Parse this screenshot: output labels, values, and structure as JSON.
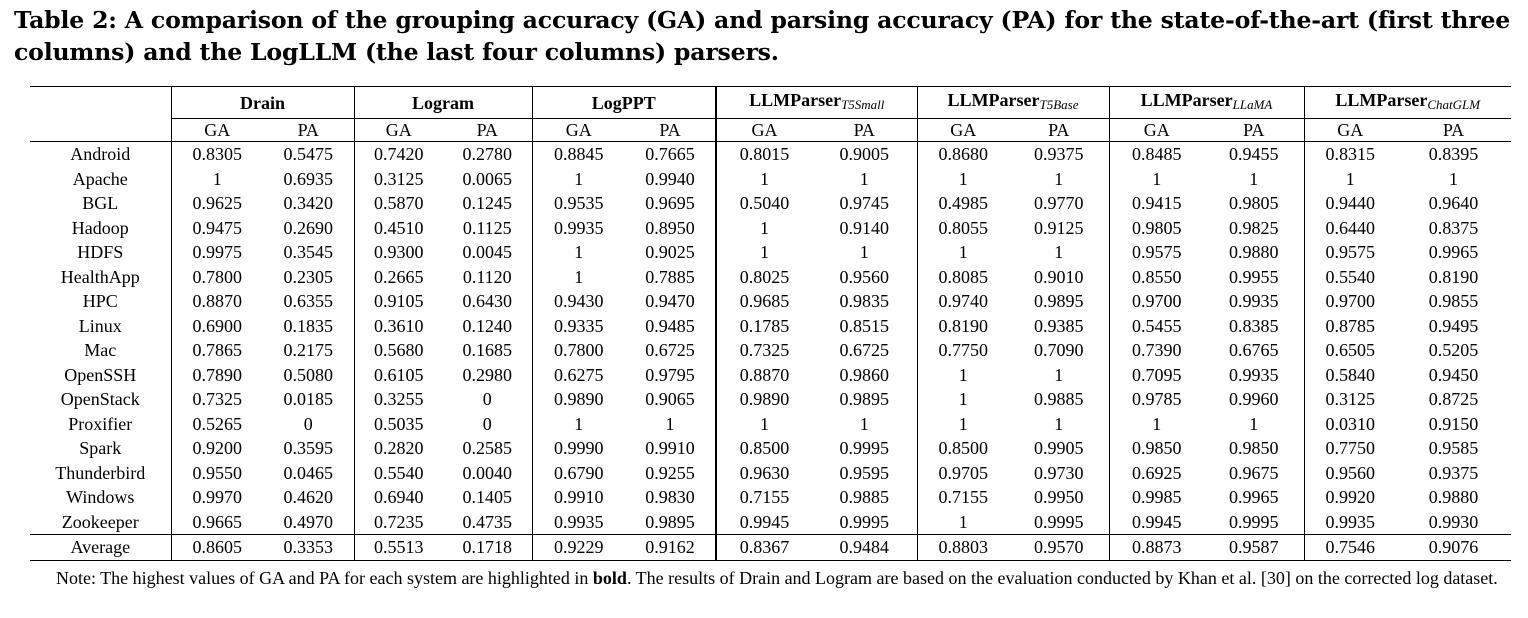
{
  "caption": "Table 2: A comparison of the grouping accuracy (GA) and parsing accuracy (PA) for the state-of-the-art (first three columns) and the LogLLM (the last four columns) parsers.",
  "systems": [
    {
      "name": "Drain",
      "sub": ""
    },
    {
      "name": "Logram",
      "sub": ""
    },
    {
      "name": "LogPPT",
      "sub": ""
    },
    {
      "name": "LLMParser",
      "sub": "T5Small"
    },
    {
      "name": "LLMParser",
      "sub": "T5Base"
    },
    {
      "name": "LLMParser",
      "sub": "LLaMA"
    },
    {
      "name": "LLMParser",
      "sub": "ChatGLM"
    }
  ],
  "metric_labels": [
    "GA",
    "PA"
  ],
  "rows": [
    {
      "name": "Android",
      "values": [
        "0.8305",
        "0.5475",
        "0.7420",
        "0.2780",
        "0.8845",
        "0.7665",
        "0.8015",
        "0.9005",
        "0.8680",
        "0.9375",
        "0.8485",
        "0.9455",
        "0.8315",
        "0.8395"
      ],
      "bold": [
        4,
        11
      ]
    },
    {
      "name": "Apache",
      "values": [
        "1",
        "0.6935",
        "0.3125",
        "0.0065",
        "1",
        "0.9940",
        "1",
        "1",
        "1",
        "1",
        "1",
        "1",
        "1",
        "1"
      ],
      "bold": [
        0,
        4,
        6,
        7,
        8,
        9,
        10,
        11,
        12,
        13
      ]
    },
    {
      "name": "BGL",
      "values": [
        "0.9625",
        "0.3420",
        "0.5870",
        "0.1245",
        "0.9535",
        "0.9695",
        "0.5040",
        "0.9745",
        "0.4985",
        "0.9770",
        "0.9415",
        "0.9805",
        "0.9440",
        "0.9640"
      ],
      "bold": [
        0,
        11
      ]
    },
    {
      "name": "Hadoop",
      "values": [
        "0.9475",
        "0.2690",
        "0.4510",
        "0.1125",
        "0.9935",
        "0.8950",
        "1",
        "0.9140",
        "0.8055",
        "0.9125",
        "0.9805",
        "0.9825",
        "0.6440",
        "0.8375"
      ],
      "bold": [
        6,
        11
      ]
    },
    {
      "name": "HDFS",
      "values": [
        "0.9975",
        "0.3545",
        "0.9300",
        "0.0045",
        "1",
        "0.9025",
        "1",
        "1",
        "1",
        "1",
        "0.9575",
        "0.9880",
        "0.9575",
        "0.9965"
      ],
      "bold": [
        4,
        6,
        7,
        8,
        9
      ]
    },
    {
      "name": "HealthApp",
      "values": [
        "0.7800",
        "0.2305",
        "0.2665",
        "0.1120",
        "1",
        "0.7885",
        "0.8025",
        "0.9560",
        "0.8085",
        "0.9010",
        "0.8550",
        "0.9955",
        "0.5540",
        "0.8190"
      ],
      "bold": [
        4,
        11
      ]
    },
    {
      "name": "HPC",
      "values": [
        "0.8870",
        "0.6355",
        "0.9105",
        "0.6430",
        "0.9430",
        "0.9470",
        "0.9685",
        "0.9835",
        "0.9740",
        "0.9895",
        "0.9700",
        "0.9935",
        "0.9700",
        "0.9855"
      ],
      "bold": [
        8,
        11
      ]
    },
    {
      "name": "Linux",
      "values": [
        "0.6900",
        "0.1835",
        "0.3610",
        "0.1240",
        "0.9335",
        "0.9485",
        "0.1785",
        "0.8515",
        "0.8190",
        "0.9385",
        "0.5455",
        "0.8385",
        "0.8785",
        "0.9495"
      ],
      "bold": [
        4,
        13
      ]
    },
    {
      "name": "Mac",
      "values": [
        "0.7865",
        "0.2175",
        "0.5680",
        "0.1685",
        "0.7800",
        "0.6725",
        "0.7325",
        "0.6725",
        "0.7750",
        "0.7090",
        "0.7390",
        "0.6765",
        "0.6505",
        "0.5205"
      ],
      "bold": [
        0,
        9
      ]
    },
    {
      "name": "OpenSSH",
      "values": [
        "0.7890",
        "0.5080",
        "0.6105",
        "0.2980",
        "0.6275",
        "0.9795",
        "0.8870",
        "0.9860",
        "1",
        "1",
        "0.7095",
        "0.9935",
        "0.5840",
        "0.9450"
      ],
      "bold": [
        8,
        9
      ]
    },
    {
      "name": "OpenStack",
      "values": [
        "0.7325",
        "0.0185",
        "0.3255",
        "0",
        "0.9890",
        "0.9065",
        "0.9890",
        "0.9895",
        "1",
        "0.9885",
        "0.9785",
        "0.9960",
        "0.3125",
        "0.8725"
      ],
      "bold": [
        8,
        11
      ]
    },
    {
      "name": "Proxifier",
      "values": [
        "0.5265",
        "0",
        "0.5035",
        "0",
        "1",
        "1",
        "1",
        "1",
        "1",
        "1",
        "1",
        "1",
        "0.0310",
        "0.9150"
      ],
      "bold": [
        4,
        5,
        6,
        7,
        8,
        9,
        10,
        11
      ]
    },
    {
      "name": "Spark",
      "values": [
        "0.9200",
        "0.3595",
        "0.2820",
        "0.2585",
        "0.9990",
        "0.9910",
        "0.8500",
        "0.9995",
        "0.8500",
        "0.9905",
        "0.9850",
        "0.9850",
        "0.7750",
        "0.9585"
      ],
      "bold": [
        4,
        7
      ]
    },
    {
      "name": "Thunderbird",
      "values": [
        "0.9550",
        "0.0465",
        "0.5540",
        "0.0040",
        "0.6790",
        "0.9255",
        "0.9630",
        "0.9595",
        "0.9705",
        "0.9730",
        "0.6925",
        "0.9675",
        "0.9560",
        "0.9375"
      ],
      "bold": [
        8,
        9
      ]
    },
    {
      "name": "Windows",
      "values": [
        "0.9970",
        "0.4620",
        "0.6940",
        "0.1405",
        "0.9910",
        "0.9830",
        "0.7155",
        "0.9885",
        "0.7155",
        "0.9950",
        "0.9985",
        "0.9965",
        "0.9920",
        "0.9880"
      ],
      "bold": [
        10,
        11
      ]
    },
    {
      "name": "Zookeeper",
      "values": [
        "0.9665",
        "0.4970",
        "0.7235",
        "0.4735",
        "0.9935",
        "0.9895",
        "0.9945",
        "0.9995",
        "1",
        "0.9995",
        "0.9945",
        "0.9995",
        "0.9935",
        "0.9930"
      ],
      "bold": [
        7,
        8,
        9,
        11
      ]
    }
  ],
  "average": {
    "name": "Average",
    "values": [
      "0.8605",
      "0.3353",
      "0.5513",
      "0.1718",
      "0.9229",
      "0.9162",
      "0.8367",
      "0.9484",
      "0.8803",
      "0.9570",
      "0.8873",
      "0.9587",
      "0.7546",
      "0.9076"
    ],
    "bold": [
      4,
      11
    ]
  },
  "note": {
    "prefix": "Note: The highest values of GA and PA for each system are highlighted in ",
    "bold_word": "bold",
    "suffix": ". The results of Drain and Logram are based on the evaluation conducted by Khan et al. [30] on the corrected log dataset."
  }
}
